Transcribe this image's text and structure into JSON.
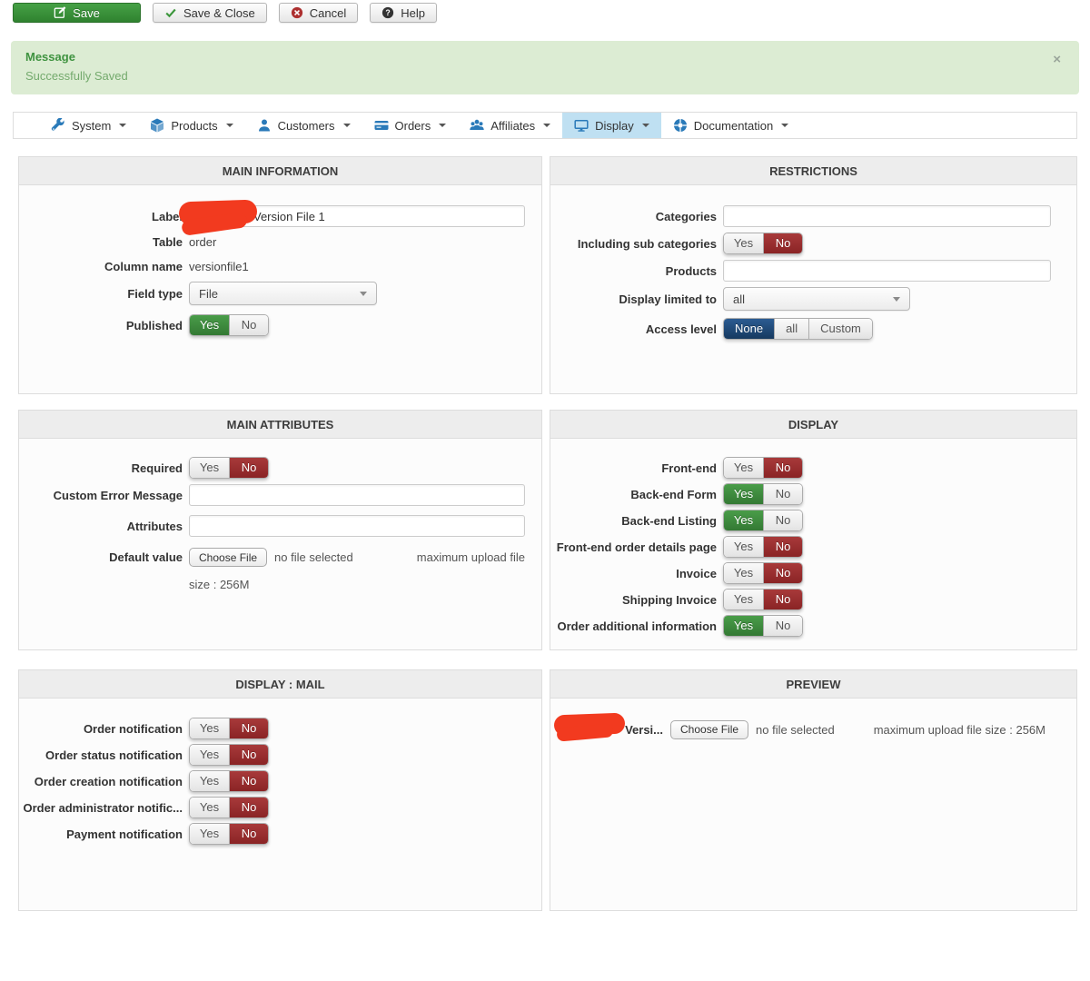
{
  "toolbar": {
    "save_label": "Save",
    "save_close_label": "Save & Close",
    "cancel_label": "Cancel",
    "help_label": "Help"
  },
  "message": {
    "title": "Message",
    "body": "Successfully Saved",
    "close_icon": "×"
  },
  "nav": {
    "items": [
      {
        "label": "System",
        "icon": "wrench-icon",
        "active": false
      },
      {
        "label": "Products",
        "icon": "cube-icon",
        "active": false
      },
      {
        "label": "Customers",
        "icon": "user-icon",
        "active": false
      },
      {
        "label": "Orders",
        "icon": "card-icon",
        "active": false
      },
      {
        "label": "Affiliates",
        "icon": "users-icon",
        "active": false
      },
      {
        "label": "Display",
        "icon": "monitor-icon",
        "active": true
      },
      {
        "label": "Documentation",
        "icon": "lifebuoy-icon",
        "active": false
      }
    ]
  },
  "toggle": {
    "yes": "Yes",
    "no": "No"
  },
  "panels": {
    "main_information": {
      "title": "MAIN INFORMATION",
      "label_field": {
        "label": "Label",
        "value": "Version File 1"
      },
      "table": {
        "label": "Table",
        "value": "order"
      },
      "column_name": {
        "label": "Column name",
        "value": "versionfile1"
      },
      "field_type": {
        "label": "Field type",
        "value": "File"
      },
      "published": {
        "label": "Published",
        "value": "Yes"
      }
    },
    "restrictions": {
      "title": "RESTRICTIONS",
      "categories": {
        "label": "Categories",
        "value": ""
      },
      "including_sub_categories": {
        "label": "Including sub categories",
        "value": "No"
      },
      "products": {
        "label": "Products",
        "value": ""
      },
      "display_limited_to": {
        "label": "Display limited to",
        "value": "all"
      },
      "access_level": {
        "label": "Access level",
        "value": "None",
        "options": [
          "None",
          "all",
          "Custom"
        ]
      }
    },
    "main_attributes": {
      "title": "MAIN ATTRIBUTES",
      "required": {
        "label": "Required",
        "value": "No"
      },
      "custom_error_message": {
        "label": "Custom Error Message",
        "value": ""
      },
      "attributes": {
        "label": "Attributes",
        "value": ""
      },
      "default_value": {
        "label": "Default value",
        "button": "Choose File",
        "status": "no file selected",
        "max_upload_line1": "maximum upload file",
        "max_upload_line2": "size : 256M"
      }
    },
    "display": {
      "title": "DISPLAY",
      "rows": [
        {
          "label": "Front-end",
          "value": "No"
        },
        {
          "label": "Back-end Form",
          "value": "Yes"
        },
        {
          "label": "Back-end Listing",
          "value": "Yes"
        },
        {
          "label": "Front-end order details page",
          "value": "No"
        },
        {
          "label": "Invoice",
          "value": "No"
        },
        {
          "label": "Shipping Invoice",
          "value": "No"
        },
        {
          "label": "Order additional information",
          "value": "Yes"
        }
      ]
    },
    "display_mail": {
      "title": "DISPLAY : MAIL",
      "rows": [
        {
          "label": "Order notification",
          "value": "No"
        },
        {
          "label": "Order status notification",
          "value": "No"
        },
        {
          "label": "Order creation notification",
          "value": "No"
        },
        {
          "label": "Order administrator notific...",
          "value": "No"
        },
        {
          "label": "Payment notification",
          "value": "No"
        }
      ]
    },
    "preview": {
      "title": "PREVIEW",
      "label": "Versi...",
      "button": "Choose File",
      "status": "no file selected",
      "max_upload": "maximum upload file size : 256M"
    }
  },
  "colors": {
    "accent_green": "#3c8a3c",
    "accent_red": "#9a2c2d",
    "accent_navy": "#1d4878",
    "nav_icon_blue": "#2a7ab9",
    "nav_active_bg": "#bfe0f2",
    "message_bg": "#dcecd3",
    "message_title_text": "#3f9340",
    "redaction_red": "#f23a1f"
  }
}
